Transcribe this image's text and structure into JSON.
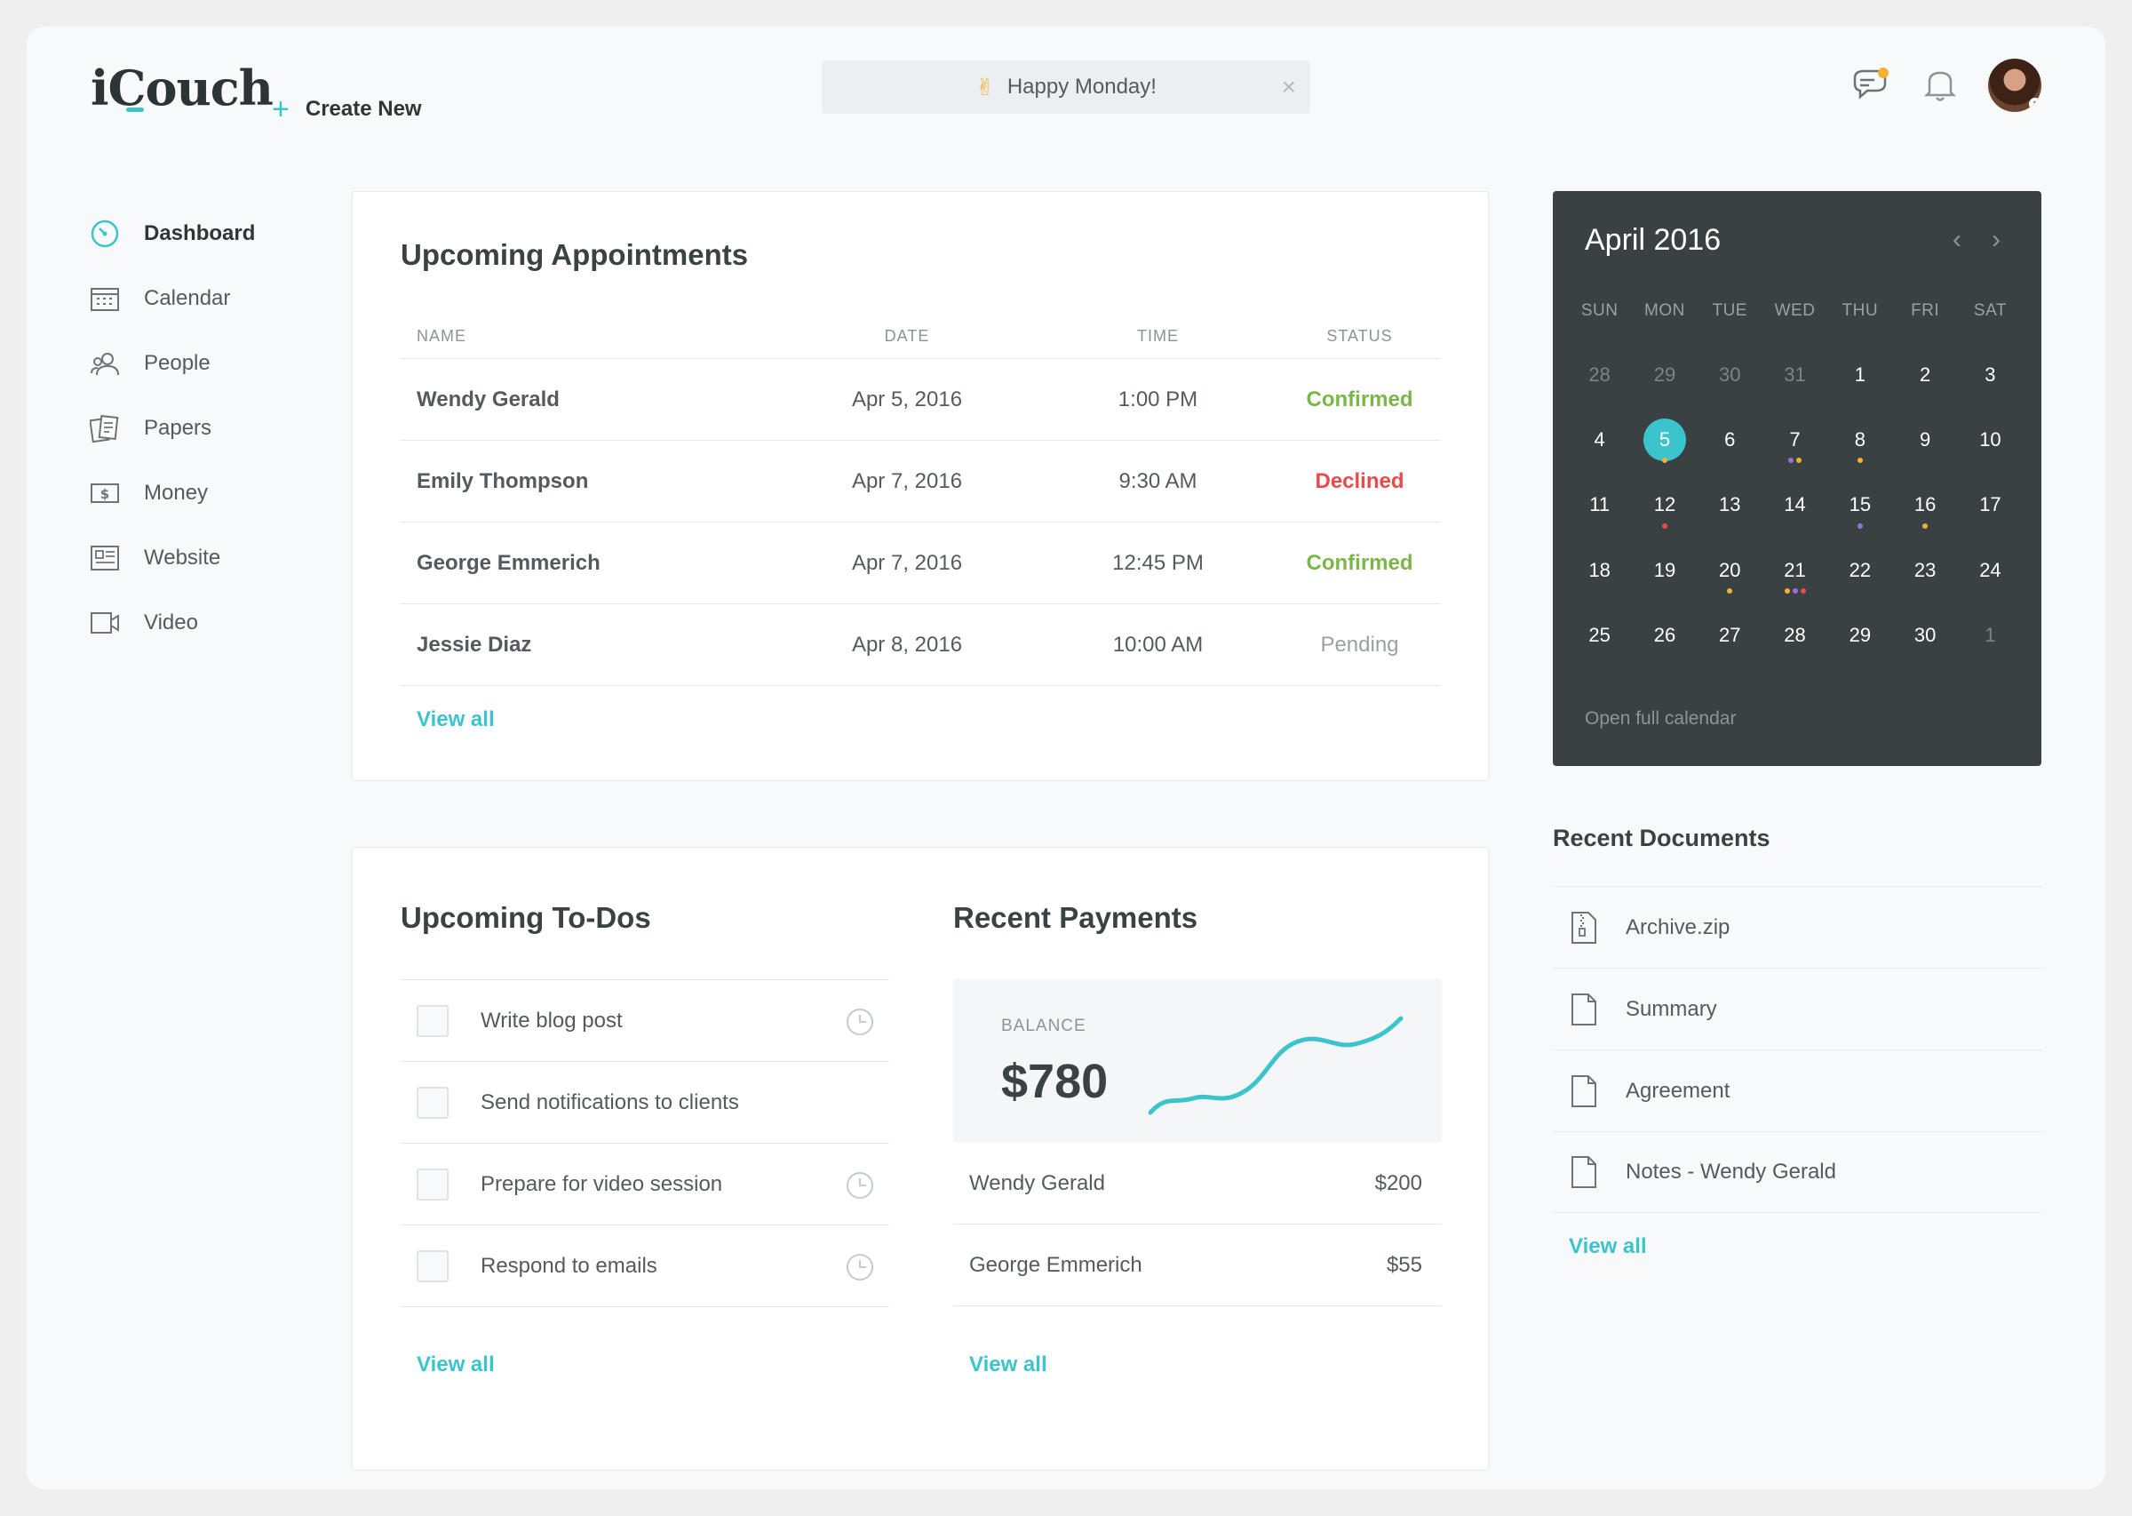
{
  "header": {
    "logo": "iCouch",
    "create_new": "Create New",
    "greeting": "Happy Monday!",
    "greeting_emoji": "✌"
  },
  "sidebar": {
    "items": [
      {
        "label": "Dashboard",
        "icon": "dashboard-icon",
        "active": true
      },
      {
        "label": "Calendar",
        "icon": "calendar-icon"
      },
      {
        "label": "People",
        "icon": "people-icon"
      },
      {
        "label": "Papers",
        "icon": "papers-icon"
      },
      {
        "label": "Money",
        "icon": "money-icon"
      },
      {
        "label": "Website",
        "icon": "website-icon"
      },
      {
        "label": "Video",
        "icon": "video-icon"
      }
    ]
  },
  "appointments": {
    "title": "Upcoming Appointments",
    "columns": [
      "NAME",
      "DATE",
      "TIME",
      "STATUS"
    ],
    "rows": [
      {
        "name": "Wendy Gerald",
        "date": "Apr 5, 2016",
        "time": "1:00 PM",
        "status": "Confirmed"
      },
      {
        "name": "Emily Thompson",
        "date": "Apr 7, 2016",
        "time": "9:30 AM",
        "status": "Declined"
      },
      {
        "name": "George Emmerich",
        "date": "Apr 7, 2016",
        "time": "12:45 PM",
        "status": "Confirmed"
      },
      {
        "name": "Jessie Diaz",
        "date": "Apr 8, 2016",
        "time": "10:00 AM",
        "status": "Pending"
      }
    ],
    "view_all": "View all"
  },
  "todos": {
    "title": "Upcoming To-Dos",
    "items": [
      {
        "text": "Write blog post",
        "has_reminder": true
      },
      {
        "text": "Send notifications to clients",
        "has_reminder": false
      },
      {
        "text": "Prepare for video session",
        "has_reminder": true
      },
      {
        "text": "Respond to emails",
        "has_reminder": true
      }
    ],
    "view_all": "View all"
  },
  "payments": {
    "title": "Recent Payments",
    "balance_label": "BALANCE",
    "balance_amount": "$780",
    "items": [
      {
        "name": "Wendy Gerald",
        "amount": "$200"
      },
      {
        "name": "George Emmerich",
        "amount": "$55"
      }
    ],
    "view_all": "View all"
  },
  "calendar": {
    "title": "April 2016",
    "weekdays": [
      "SUN",
      "MON",
      "TUE",
      "WED",
      "THU",
      "FRI",
      "SAT"
    ],
    "days": [
      {
        "d": "28",
        "muted": true
      },
      {
        "d": "29",
        "muted": true
      },
      {
        "d": "30",
        "muted": true
      },
      {
        "d": "31",
        "muted": true
      },
      {
        "d": "1"
      },
      {
        "d": "2"
      },
      {
        "d": "3"
      },
      {
        "d": "4"
      },
      {
        "d": "5",
        "today": true,
        "dots": [
          "#f2b134"
        ]
      },
      {
        "d": "6"
      },
      {
        "d": "7",
        "dots": [
          "#9b6fd8",
          "#f2b134"
        ]
      },
      {
        "d": "8",
        "dots": [
          "#f2b134"
        ]
      },
      {
        "d": "9"
      },
      {
        "d": "10"
      },
      {
        "d": "11"
      },
      {
        "d": "12",
        "dots": [
          "#e94b4b"
        ]
      },
      {
        "d": "13"
      },
      {
        "d": "14"
      },
      {
        "d": "15",
        "dots": [
          "#9b6fd8"
        ]
      },
      {
        "d": "16",
        "dots": [
          "#f2b134"
        ]
      },
      {
        "d": "17"
      },
      {
        "d": "18"
      },
      {
        "d": "19"
      },
      {
        "d": "20",
        "dots": [
          "#f2b134"
        ]
      },
      {
        "d": "21",
        "dots": [
          "#f2b134",
          "#9b6fd8",
          "#e94b4b"
        ]
      },
      {
        "d": "22"
      },
      {
        "d": "23"
      },
      {
        "d": "24"
      },
      {
        "d": "25"
      },
      {
        "d": "26"
      },
      {
        "d": "27"
      },
      {
        "d": "28"
      },
      {
        "d": "29"
      },
      {
        "d": "30"
      },
      {
        "d": "1",
        "muted": true
      }
    ],
    "open_full": "Open full calendar"
  },
  "documents": {
    "title": "Recent Documents",
    "items": [
      {
        "name": "Archive.zip",
        "icon": "zip-file-icon"
      },
      {
        "name": "Summary",
        "icon": "document-icon"
      },
      {
        "name": "Agreement",
        "icon": "document-icon"
      },
      {
        "name": "Notes - Wendy Gerald",
        "icon": "document-icon"
      }
    ],
    "view_all": "View all"
  },
  "colors": {
    "accent": "#3cc4cc",
    "confirmed": "#7ab648",
    "declined": "#e94b4b",
    "pending": "#9aa0a3",
    "calendar_bg": "#3a4143"
  }
}
